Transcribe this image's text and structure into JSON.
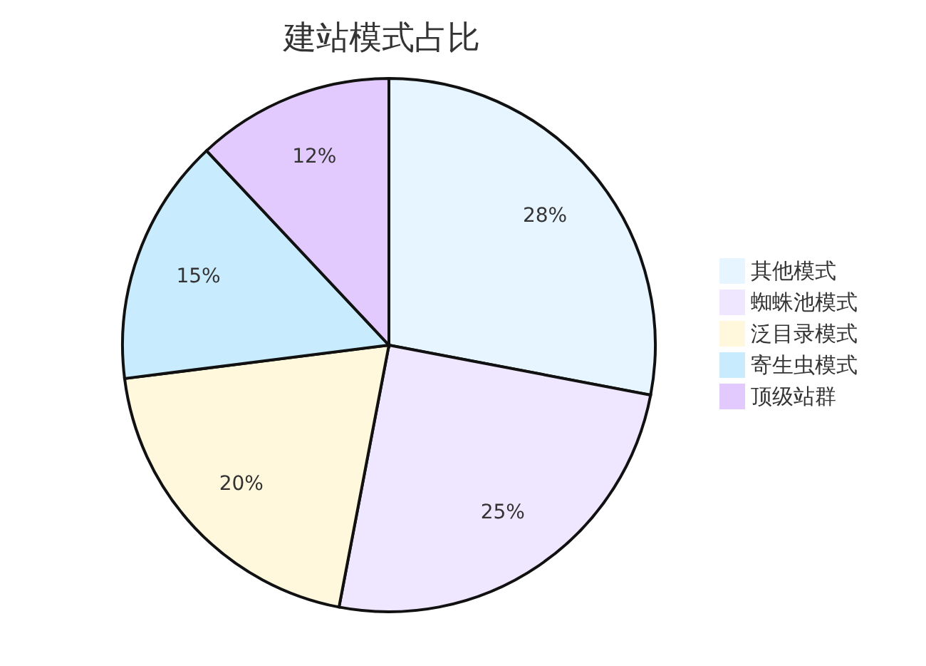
{
  "chart_data": {
    "type": "pie",
    "title": "建站模式占比",
    "categories": [
      "其他模式",
      "蜘蛛池模式",
      "泛目录模式",
      "寄生虫模式",
      "顶级站群"
    ],
    "values": [
      28,
      25,
      20,
      15,
      12
    ],
    "value_labels": [
      "28%",
      "25%",
      "20%",
      "15%",
      "12%"
    ],
    "colors": [
      "#e6f5ff",
      "#efe6ff",
      "#fff8dc",
      "#c8ecfe",
      "#e2caff"
    ],
    "legend": "right"
  }
}
